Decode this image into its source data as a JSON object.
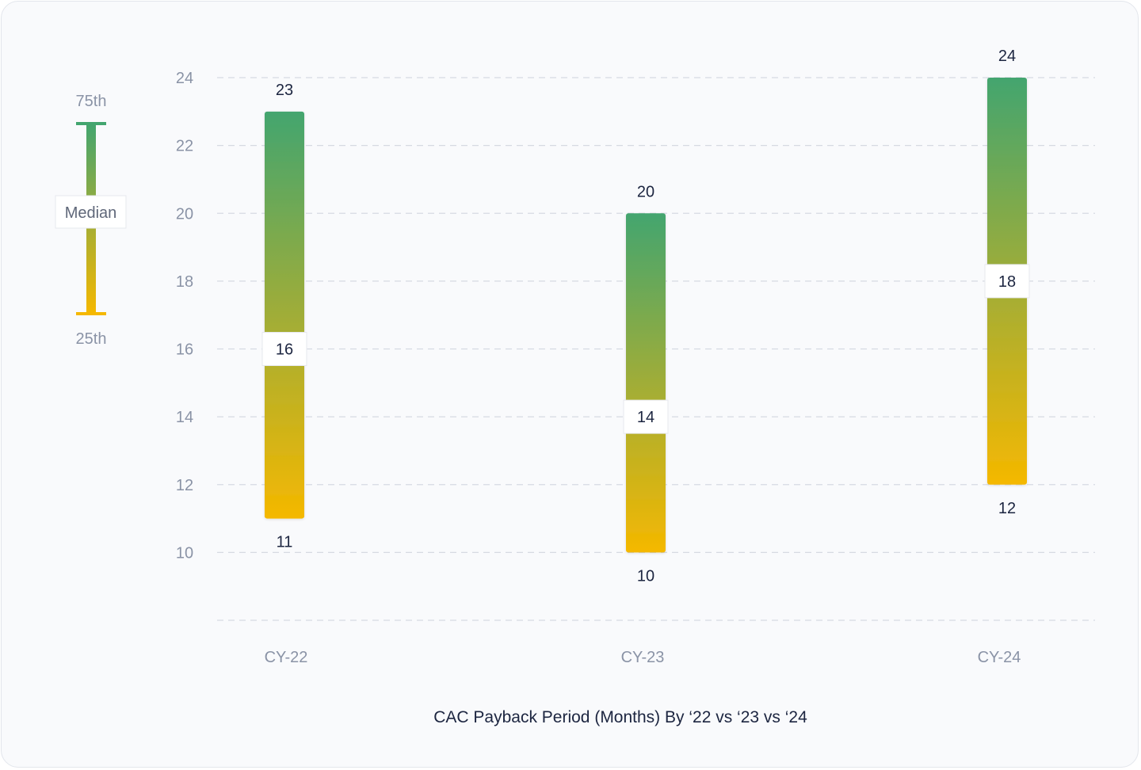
{
  "chart_data": {
    "type": "range-bar",
    "title": "CAC Payback Period (Months) By ‘22 vs ‘23 vs ‘24",
    "xlabel": "",
    "ylabel": "",
    "ylim": [
      8,
      24
    ],
    "yticks": [
      10,
      12,
      14,
      16,
      18,
      20,
      22,
      24
    ],
    "grid": true,
    "categories": [
      "CY-22",
      "CY-23",
      "CY-24"
    ],
    "series": [
      {
        "p75": [
          23,
          20,
          24
        ],
        "median": [
          16,
          14,
          18
        ],
        "p25": [
          11,
          10,
          12
        ]
      }
    ],
    "legend": {
      "placement": "left",
      "top_label": "75th",
      "middle_label": "Median",
      "bottom_label": "25th"
    },
    "colors": {
      "top": "#43a56f",
      "bottom": "#f5b800",
      "grid": "#d6dae2",
      "axis_text": "#8a93a6",
      "value_text": "#1c2540"
    }
  }
}
